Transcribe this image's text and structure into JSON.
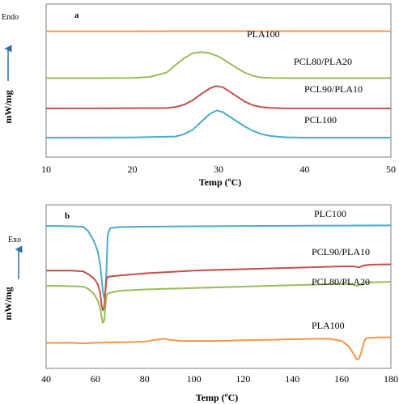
{
  "chart_data": [
    {
      "type": "line",
      "panel": "a",
      "title": "",
      "xlabel": "Temp (ºC)",
      "ylabel": "mW/mg",
      "xlim": [
        10,
        50
      ],
      "xticks": [
        "10",
        "20",
        "30",
        "40",
        "50"
      ],
      "side_label": "Endo",
      "grid": false,
      "series": [
        {
          "name": "PLA100",
          "color": "#F79646",
          "x": [
            10,
            15,
            20,
            25,
            30,
            35,
            40,
            45,
            50
          ],
          "y": [
            0.938,
            0.938,
            0.938,
            0.939,
            0.939,
            0.939,
            0.939,
            0.939,
            0.939
          ]
        },
        {
          "name": "PCL80/PLA20",
          "color": "#9BBB59",
          "x": [
            10,
            16,
            20,
            22,
            24,
            25,
            26,
            27,
            28,
            29,
            30,
            31,
            32,
            33,
            34,
            35,
            36,
            38,
            40,
            45,
            50
          ],
          "y": [
            0.525,
            0.525,
            0.527,
            0.535,
            0.575,
            0.64,
            0.7,
            0.745,
            0.755,
            0.745,
            0.715,
            0.67,
            0.62,
            0.575,
            0.545,
            0.53,
            0.527,
            0.525,
            0.525,
            0.525,
            0.525
          ]
        },
        {
          "name": "PCL90/PLA10",
          "color": "#C0504D",
          "x": [
            10,
            20,
            24,
            25,
            26,
            27,
            28,
            29,
            29.7,
            30.5,
            31,
            32,
            33,
            34,
            35,
            36,
            37,
            38,
            40,
            45,
            50
          ],
          "y": [
            0.258,
            0.26,
            0.262,
            0.27,
            0.29,
            0.33,
            0.385,
            0.435,
            0.455,
            0.445,
            0.42,
            0.37,
            0.32,
            0.285,
            0.27,
            0.263,
            0.26,
            0.258,
            0.258,
            0.258,
            0.258
          ]
        },
        {
          "name": "PCL100",
          "color": "#4BACC6",
          "x": [
            10,
            20,
            25,
            26,
            27,
            28,
            29,
            29.8,
            30.5,
            31,
            32,
            33,
            34,
            35,
            36,
            37,
            38,
            40,
            45,
            50
          ],
          "y": [
            0.0,
            0.002,
            0.01,
            0.03,
            0.07,
            0.14,
            0.21,
            0.24,
            0.225,
            0.2,
            0.15,
            0.1,
            0.06,
            0.03,
            0.015,
            0.007,
            0.003,
            0.0,
            0.0,
            0.0
          ]
        }
      ]
    },
    {
      "type": "line",
      "panel": "b",
      "title": "",
      "xlabel": "Temp (ºC)",
      "ylabel": "mW/mg",
      "xlim": [
        40,
        180
      ],
      "xticks": [
        "40",
        "60",
        "80",
        "100",
        "120",
        "140",
        "160",
        "180"
      ],
      "side_label": "Exo",
      "grid": false,
      "series": [
        {
          "name": "PLC100",
          "color": "#4BACC6",
          "x": [
            40,
            45,
            50,
            55,
            57,
            59,
            60,
            61,
            62,
            63,
            63.5,
            64,
            64.5,
            65,
            66,
            70,
            80,
            100,
            120,
            140,
            160,
            180
          ],
          "y": [
            0.935,
            0.935,
            0.933,
            0.93,
            0.9,
            0.84,
            0.8,
            0.75,
            0.65,
            0.47,
            0.42,
            0.45,
            0.62,
            0.87,
            0.92,
            0.928,
            0.93,
            0.933,
            0.935,
            0.937,
            0.938,
            0.94
          ]
        },
        {
          "name": "PCL90/PLA10",
          "color": "#C0504D",
          "x": [
            40,
            45,
            50,
            55,
            57,
            59,
            60,
            61,
            62,
            62.5,
            63,
            63.5,
            64,
            64.5,
            65,
            67,
            70,
            80,
            100,
            120,
            140,
            160,
            165,
            167,
            169,
            172,
            180
          ],
          "y": [
            0.615,
            0.615,
            0.615,
            0.61,
            0.59,
            0.565,
            0.545,
            0.515,
            0.45,
            0.37,
            0.33,
            0.34,
            0.45,
            0.55,
            0.57,
            0.575,
            0.58,
            0.595,
            0.615,
            0.625,
            0.635,
            0.645,
            0.645,
            0.638,
            0.652,
            0.658,
            0.66
          ]
        },
        {
          "name": "PCL80/PLA20",
          "color": "#9BBB59",
          "x": [
            40,
            45,
            50,
            55,
            57,
            59,
            60,
            61,
            62,
            62.5,
            63,
            63.5,
            64,
            64.5,
            65,
            67,
            70,
            80,
            100,
            120,
            140,
            160,
            164,
            166,
            168,
            170,
            175,
            180
          ],
          "y": [
            0.505,
            0.505,
            0.503,
            0.5,
            0.485,
            0.455,
            0.43,
            0.4,
            0.34,
            0.28,
            0.24,
            0.25,
            0.34,
            0.43,
            0.45,
            0.46,
            0.47,
            0.48,
            0.49,
            0.5,
            0.51,
            0.52,
            0.52,
            0.505,
            0.515,
            0.53,
            0.532,
            0.535
          ]
        },
        {
          "name": "PLA100",
          "color": "#F79646",
          "x": [
            40,
            50,
            55,
            60,
            70,
            80,
            85,
            88,
            90,
            95,
            100,
            110,
            120,
            130,
            140,
            150,
            155,
            160,
            163,
            165,
            166,
            167,
            168,
            169,
            170,
            175,
            180
          ],
          "y": [
            0.095,
            0.097,
            0.092,
            0.097,
            0.1,
            0.105,
            0.12,
            0.125,
            0.118,
            0.11,
            0.11,
            0.11,
            0.115,
            0.118,
            0.122,
            0.125,
            0.125,
            0.11,
            0.07,
            0.01,
            -0.02,
            -0.02,
            0.03,
            0.1,
            0.13,
            0.135,
            0.135
          ]
        }
      ]
    }
  ],
  "annotations": {
    "panel_a": {
      "letter": "a"
    },
    "panel_b": {
      "letter": "b"
    }
  }
}
